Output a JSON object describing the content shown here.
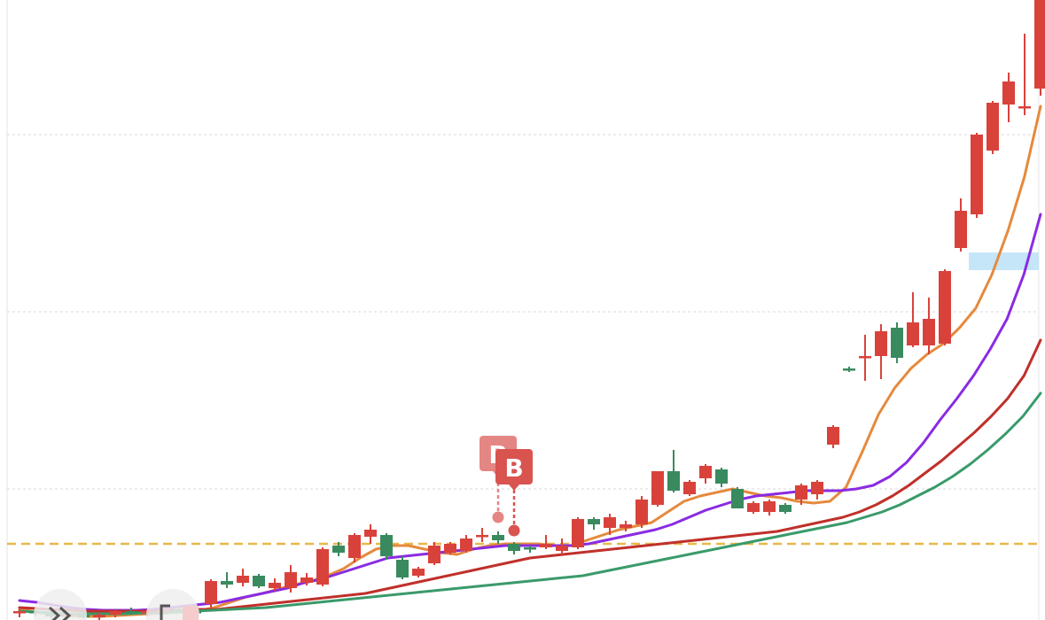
{
  "chart_data": {
    "type": "candlestick",
    "title": "",
    "xlabel": "",
    "ylabel": "",
    "ylim": [
      0,
      700
    ],
    "grid": true,
    "legend": "none",
    "reference_line": {
      "value": 86,
      "style": "dashed",
      "color": "#e8b84a"
    },
    "highlight_band": {
      "x_start": 59.5,
      "x_end": 64,
      "y_low": 395,
      "y_high": 415,
      "color": "#bfe3f7"
    },
    "markers": [
      {
        "label": "B",
        "x": 30,
        "y": 116,
        "color": "#d9534f",
        "opacity": 0.7
      },
      {
        "label": "B",
        "x": 31,
        "y": 101,
        "color": "#d9534f",
        "opacity": 1.0
      }
    ],
    "candles": [
      {
        "o": 8,
        "h": 12,
        "l": 3,
        "c": 10
      },
      {
        "o": 10,
        "h": 14,
        "l": 5,
        "c": 8
      },
      {
        "o": 8,
        "h": 11,
        "l": 2,
        "c": 4
      },
      {
        "o": 4,
        "h": 9,
        "l": 1,
        "c": 6
      },
      {
        "o": 6,
        "h": 10,
        "l": 2,
        "c": 3
      },
      {
        "o": 3,
        "h": 8,
        "l": 0,
        "c": 6
      },
      {
        "o": 6,
        "h": 11,
        "l": 3,
        "c": 10
      },
      {
        "o": 10,
        "h": 14,
        "l": 6,
        "c": 8
      },
      {
        "o": 8,
        "h": 12,
        "l": 4,
        "c": 10
      },
      {
        "o": 10,
        "h": 14,
        "l": 6,
        "c": 12
      },
      {
        "o": 12,
        "h": 15,
        "l": 8,
        "c": 10
      },
      {
        "o": 10,
        "h": 13,
        "l": 6,
        "c": 9
      },
      {
        "o": 18,
        "h": 46,
        "l": 14,
        "c": 44
      },
      {
        "o": 44,
        "h": 54,
        "l": 36,
        "c": 40
      },
      {
        "o": 42,
        "h": 58,
        "l": 38,
        "c": 50
      },
      {
        "o": 50,
        "h": 52,
        "l": 36,
        "c": 38
      },
      {
        "o": 36,
        "h": 47,
        "l": 33,
        "c": 42
      },
      {
        "o": 36,
        "h": 62,
        "l": 31,
        "c": 54
      },
      {
        "o": 42,
        "h": 53,
        "l": 39,
        "c": 48
      },
      {
        "o": 40,
        "h": 82,
        "l": 38,
        "c": 80
      },
      {
        "o": 84,
        "h": 88,
        "l": 72,
        "c": 76
      },
      {
        "o": 70,
        "h": 98,
        "l": 65,
        "c": 96
      },
      {
        "o": 94,
        "h": 108,
        "l": 86,
        "c": 102
      },
      {
        "o": 96,
        "h": 98,
        "l": 68,
        "c": 72
      },
      {
        "o": 68,
        "h": 72,
        "l": 46,
        "c": 48
      },
      {
        "o": 50,
        "h": 60,
        "l": 48,
        "c": 58
      },
      {
        "o": 64,
        "h": 88,
        "l": 62,
        "c": 84
      },
      {
        "o": 76,
        "h": 88,
        "l": 74,
        "c": 86
      },
      {
        "o": 78,
        "h": 96,
        "l": 76,
        "c": 92
      },
      {
        "o": 94,
        "h": 104,
        "l": 88,
        "c": 96
      },
      {
        "o": 96,
        "h": 100,
        "l": 86,
        "c": 90
      },
      {
        "o": 86,
        "h": 88,
        "l": 74,
        "c": 78
      },
      {
        "o": 82,
        "h": 84,
        "l": 76,
        "c": 80
      },
      {
        "o": 82,
        "h": 96,
        "l": 80,
        "c": 86
      },
      {
        "o": 78,
        "h": 92,
        "l": 74,
        "c": 84
      },
      {
        "o": 82,
        "h": 116,
        "l": 80,
        "c": 114
      },
      {
        "o": 114,
        "h": 116,
        "l": 102,
        "c": 108
      },
      {
        "o": 104,
        "h": 120,
        "l": 96,
        "c": 116
      },
      {
        "o": 104,
        "h": 112,
        "l": 100,
        "c": 108
      },
      {
        "o": 108,
        "h": 140,
        "l": 104,
        "c": 136
      },
      {
        "o": 130,
        "h": 168,
        "l": 128,
        "c": 168
      },
      {
        "o": 168,
        "h": 192,
        "l": 144,
        "c": 146
      },
      {
        "o": 142,
        "h": 158,
        "l": 140,
        "c": 156
      },
      {
        "o": 160,
        "h": 176,
        "l": 154,
        "c": 174
      },
      {
        "o": 170,
        "h": 172,
        "l": 150,
        "c": 154
      },
      {
        "o": 148,
        "h": 150,
        "l": 126,
        "c": 126
      },
      {
        "o": 122,
        "h": 134,
        "l": 120,
        "c": 132
      },
      {
        "o": 122,
        "h": 136,
        "l": 118,
        "c": 134
      },
      {
        "o": 130,
        "h": 132,
        "l": 120,
        "c": 122
      },
      {
        "o": 136,
        "h": 154,
        "l": 130,
        "c": 152
      },
      {
        "o": 142,
        "h": 158,
        "l": 136,
        "c": 156
      },
      {
        "o": 198,
        "h": 220,
        "l": 194,
        "c": 218
      },
      {
        "o": 284,
        "h": 286,
        "l": 280,
        "c": 282
      },
      {
        "o": 296,
        "h": 322,
        "l": 270,
        "c": 298
      },
      {
        "o": 298,
        "h": 334,
        "l": 272,
        "c": 326
      },
      {
        "o": 330,
        "h": 336,
        "l": 290,
        "c": 296
      },
      {
        "o": 310,
        "h": 370,
        "l": 308,
        "c": 336
      },
      {
        "o": 310,
        "h": 364,
        "l": 300,
        "c": 340
      },
      {
        "o": 312,
        "h": 396,
        "l": 310,
        "c": 394
      },
      {
        "o": 420,
        "h": 476,
        "l": 416,
        "c": 462
      },
      {
        "o": 458,
        "h": 550,
        "l": 454,
        "c": 548
      },
      {
        "o": 530,
        "h": 586,
        "l": 526,
        "c": 584
      },
      {
        "o": 582,
        "h": 618,
        "l": 562,
        "c": 608
      },
      {
        "o": 580,
        "h": 662,
        "l": 570,
        "c": 580
      },
      {
        "o": 600,
        "h": 710,
        "l": 592,
        "c": 710
      }
    ],
    "series": [
      {
        "color": "#e58a3d",
        "values": [
          12,
          9,
          7,
          5,
          4,
          4,
          5,
          6,
          7,
          8,
          9,
          10,
          14,
          20,
          26,
          30,
          35,
          40,
          44,
          50,
          58,
          70,
          80,
          84,
          84,
          80,
          76,
          74,
          80,
          84,
          86,
          86,
          86,
          84,
          84,
          90,
          96,
          102,
          106,
          110,
          122,
          134,
          140,
          144,
          148,
          144,
          140,
          138,
          134,
          132,
          134,
          150,
          190,
          232,
          262,
          284,
          300,
          312,
          330,
          352,
          390,
          440,
          500,
          580
        ],
        "width": 3
      },
      {
        "color": "#8a2be2",
        "values": [
          22,
          20,
          17,
          14,
          12,
          11,
          11,
          11,
          12,
          14,
          16,
          18,
          20,
          24,
          28,
          32,
          36,
          42,
          46,
          52,
          58,
          64,
          70,
          72,
          74,
          76,
          78,
          80,
          82,
          84,
          84,
          84,
          84,
          84,
          86,
          90,
          94,
          98,
          102,
          108,
          116,
          124,
          130,
          136,
          140,
          142,
          144,
          146,
          146,
          146,
          148,
          152,
          162,
          178,
          200,
          226,
          250,
          276,
          306,
          340,
          390,
          458
        ],
        "width": 3
      },
      {
        "color": "#c0302a",
        "values": [
          14,
          13,
          12,
          11,
          10,
          10,
          10,
          10,
          10,
          11,
          11,
          12,
          12,
          14,
          16,
          18,
          20,
          22,
          24,
          26,
          28,
          30,
          34,
          38,
          42,
          46,
          50,
          54,
          58,
          62,
          66,
          70,
          72,
          74,
          76,
          78,
          80,
          82,
          84,
          86,
          88,
          90,
          92,
          94,
          96,
          98,
          100,
          104,
          108,
          112,
          116,
          122,
          130,
          140,
          152,
          166,
          180,
          196,
          212,
          230,
          250,
          276,
          316
        ],
        "width": 3
      },
      {
        "color": "#3a9a6a",
        "values": [
          10,
          9,
          8,
          7,
          7,
          7,
          7,
          8,
          8,
          9,
          10,
          11,
          12,
          13,
          14,
          16,
          18,
          20,
          22,
          24,
          26,
          28,
          30,
          32,
          34,
          36,
          38,
          40,
          42,
          44,
          46,
          48,
          50,
          54,
          58,
          62,
          66,
          70,
          74,
          78,
          82,
          86,
          90,
          94,
          98,
          102,
          106,
          110,
          116,
          122,
          130,
          140,
          150,
          162,
          176,
          192,
          210,
          230,
          256
        ],
        "width": 3
      }
    ]
  },
  "nav": {
    "left_button_icon": "double-chevron-right-icon",
    "right_button_icon": "bracket-icon"
  }
}
